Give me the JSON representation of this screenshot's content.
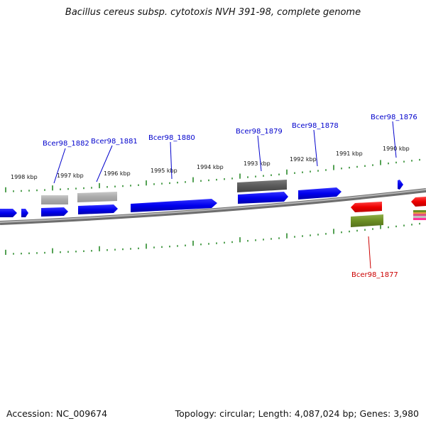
{
  "title": "Bacillus cereus subsp. cytotoxis NVH 391-98, complete genome",
  "footer": {
    "accession": "Accession: NC_009674",
    "summary": "Topology: circular; Length: 4,087,024 bp; Genes: 3,980"
  },
  "colors": {
    "backbone": "#8a8a8a",
    "tick": "#2a8a2a",
    "cds_forward": "#0000ee",
    "gene_label_blue": "#0000cc",
    "gene_label_red": "#cc0000",
    "pseudo_gray": "#a9a9a9",
    "dark_gray": "#595959",
    "red_gene": "#ee0000",
    "olive_gene": "#6b8e23"
  },
  "ticks": [
    {
      "label": "1998 kbp"
    },
    {
      "label": "1997 kbp"
    },
    {
      "label": "1996 kbp"
    },
    {
      "label": "1995 kbp"
    },
    {
      "label": "1994 kbp"
    },
    {
      "label": "1993 kbp"
    },
    {
      "label": "1992 kbp"
    },
    {
      "label": "1991 kbp"
    },
    {
      "label": "1990 kbp"
    }
  ],
  "gene_labels": [
    {
      "name": "Bcer98_1882"
    },
    {
      "name": "Bcer98_1881"
    },
    {
      "name": "Bcer98_1880"
    },
    {
      "name": "Bcer98_1879"
    },
    {
      "name": "Bcer98_1878"
    },
    {
      "name": "Bcer98_1876"
    },
    {
      "name": "Bcer98_1877"
    }
  ]
}
